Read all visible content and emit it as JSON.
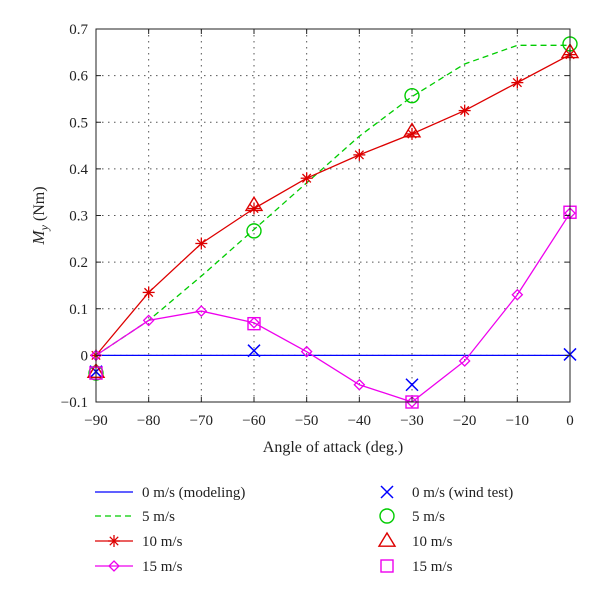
{
  "chart_data": {
    "type": "line",
    "title": "",
    "xlabel": "Angle of attack (deg.)",
    "ylabel_main": "M",
    "ylabel_sub": "y",
    "ylabel_unit": " (Nm)",
    "xlim": [
      -90,
      0
    ],
    "ylim": [
      -0.1,
      0.7
    ],
    "xticks": [
      -90,
      -80,
      -70,
      -60,
      -50,
      -40,
      -30,
      -20,
      -10,
      0
    ],
    "xtick_labels": [
      "−90",
      "−80",
      "−70",
      "−60",
      "−50",
      "−40",
      "−30",
      "−20",
      "−10",
      "0"
    ],
    "yticks": [
      -0.1,
      0,
      0.1,
      0.2,
      0.3,
      0.4,
      0.5,
      0.6,
      0.7
    ],
    "ytick_labels": [
      "−0.1",
      "0",
      "0.1",
      "0.2",
      "0.3",
      "0.4",
      "0.5",
      "0.6",
      "0.7"
    ],
    "grid": true,
    "legend_position": "bottom",
    "series": [
      {
        "name": "0 m/s (modeling)",
        "color": "#0000ff",
        "line": "solid",
        "marker": "none",
        "x": [
          -90,
          0
        ],
        "y": [
          0,
          0
        ]
      },
      {
        "name": "5 m/s",
        "color": "#00cc00",
        "line": "dashed",
        "marker": "none",
        "x": [
          -90,
          -80,
          -70,
          -60,
          -50,
          -40,
          -30,
          -20,
          -10,
          0
        ],
        "y": [
          0,
          0.075,
          0.17,
          0.27,
          0.37,
          0.47,
          0.555,
          0.625,
          0.665,
          0.665
        ]
      },
      {
        "name": "10 m/s",
        "color": "#dd0000",
        "line": "solid",
        "marker": "asterisk",
        "x": [
          -90,
          -80,
          -70,
          -60,
          -50,
          -40,
          -30,
          -20,
          -10,
          0
        ],
        "y": [
          0,
          0.135,
          0.24,
          0.315,
          0.38,
          0.43,
          0.475,
          0.525,
          0.585,
          0.645
        ]
      },
      {
        "name": "15 m/s",
        "color": "#ee00ee",
        "line": "solid",
        "marker": "diamond",
        "x": [
          -90,
          -80,
          -70,
          -60,
          -50,
          -40,
          -30,
          -20,
          -10,
          0
        ],
        "y": [
          0,
          0.075,
          0.095,
          0.07,
          0.008,
          -0.063,
          -0.1,
          -0.012,
          0.13,
          0.305
        ]
      },
      {
        "name": "0 m/s (wind test)",
        "color": "#0000ff",
        "line": "none",
        "marker": "x",
        "x": [
          -90,
          -60,
          -30,
          0
        ],
        "y": [
          -0.035,
          0.01,
          -0.063,
          0.002
        ]
      },
      {
        "name": "5 m/s",
        "color": "#00cc00",
        "line": "none",
        "marker": "circle",
        "x": [
          -90,
          -60,
          -30,
          0
        ],
        "y": [
          -0.038,
          0.267,
          0.557,
          0.668
        ]
      },
      {
        "name": "10 m/s",
        "color": "#dd0000",
        "line": "none",
        "marker": "triangle",
        "x": [
          -90,
          -60,
          -30,
          0
        ],
        "y": [
          -0.036,
          0.322,
          0.48,
          0.65
        ]
      },
      {
        "name": "15 m/s",
        "color": "#ee00ee",
        "line": "none",
        "marker": "square",
        "x": [
          -90,
          -60,
          -30,
          0
        ],
        "y": [
          -0.038,
          0.068,
          -0.1,
          0.307
        ]
      }
    ]
  }
}
